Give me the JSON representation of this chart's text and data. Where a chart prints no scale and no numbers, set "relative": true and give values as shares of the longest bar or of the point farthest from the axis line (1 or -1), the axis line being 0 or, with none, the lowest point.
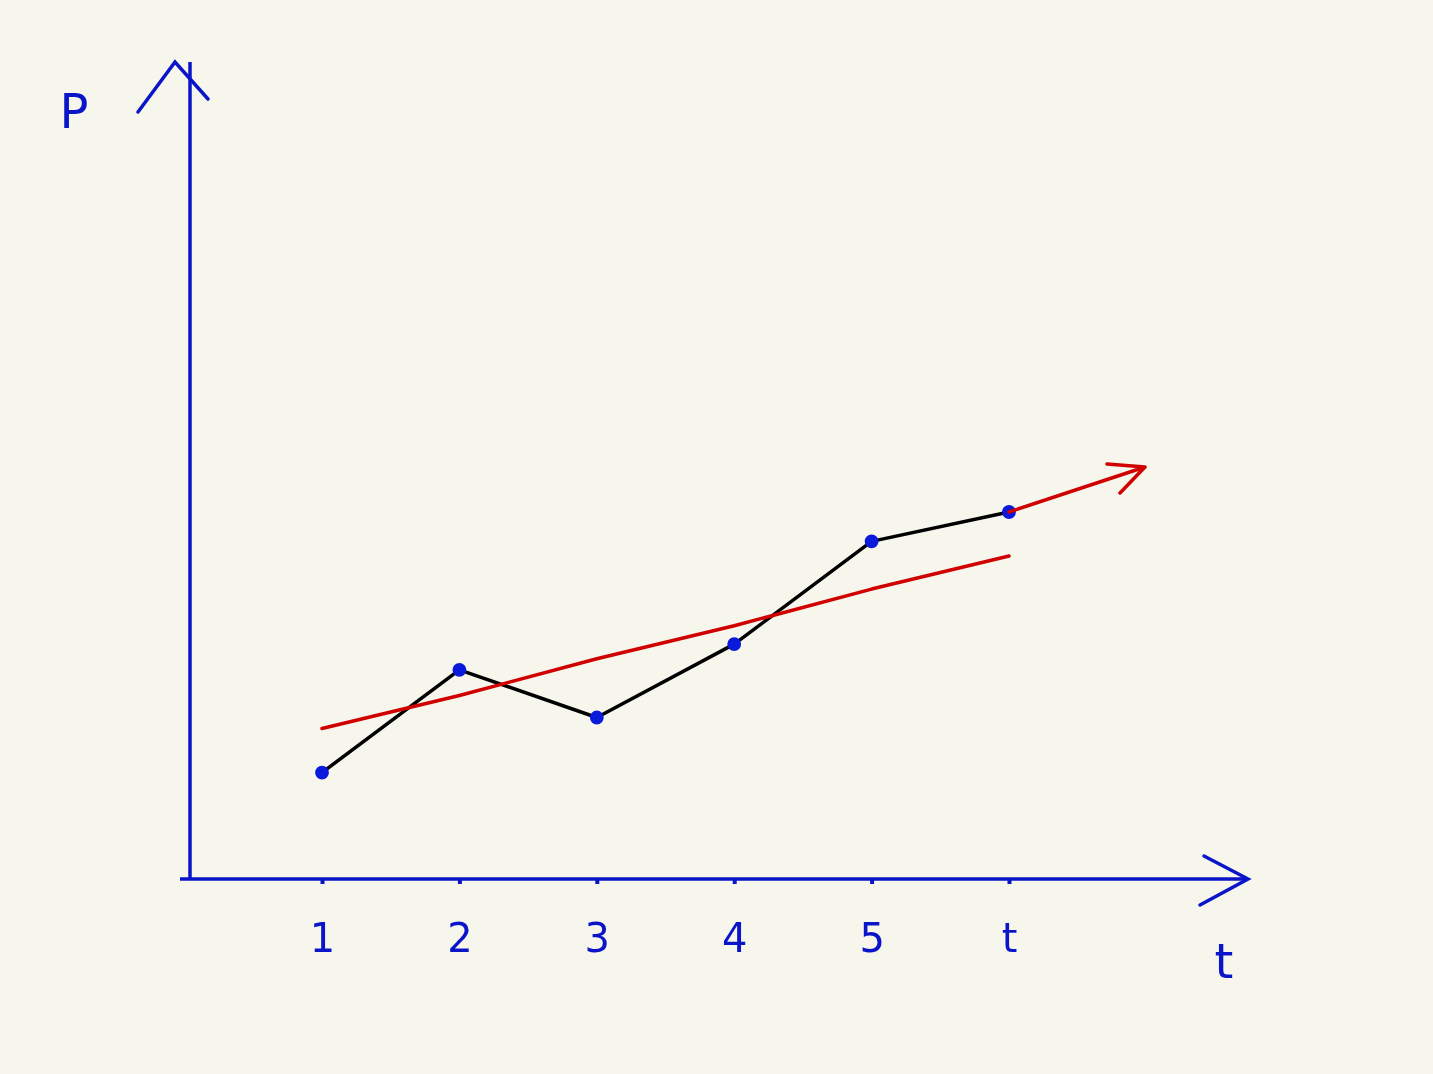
{
  "chart_data": {
    "type": "line",
    "relative": true,
    "xlabel": "t",
    "annotations": [
      "P"
    ],
    "categories": [
      "1",
      "2",
      "3",
      "4",
      "5",
      "t"
    ],
    "legend": false,
    "marker": "circle",
    "line_style": "solid",
    "series": [
      {
        "color": "#000000",
        "colors": [
          "#0a1adb",
          "#0a1adb",
          "#0a1adb",
          "#0a1adb",
          "#0a1adb",
          "#0a1adb"
        ],
        "values": [
          0.29,
          0.57,
          0.44,
          0.64,
          0.92,
          1
        ]
      },
      {
        "color": "#d00000",
        "marker": "none",
        "values": [
          0.41,
          0.5,
          0.6,
          0.69,
          0.79,
          0.88
        ]
      }
    ]
  }
}
